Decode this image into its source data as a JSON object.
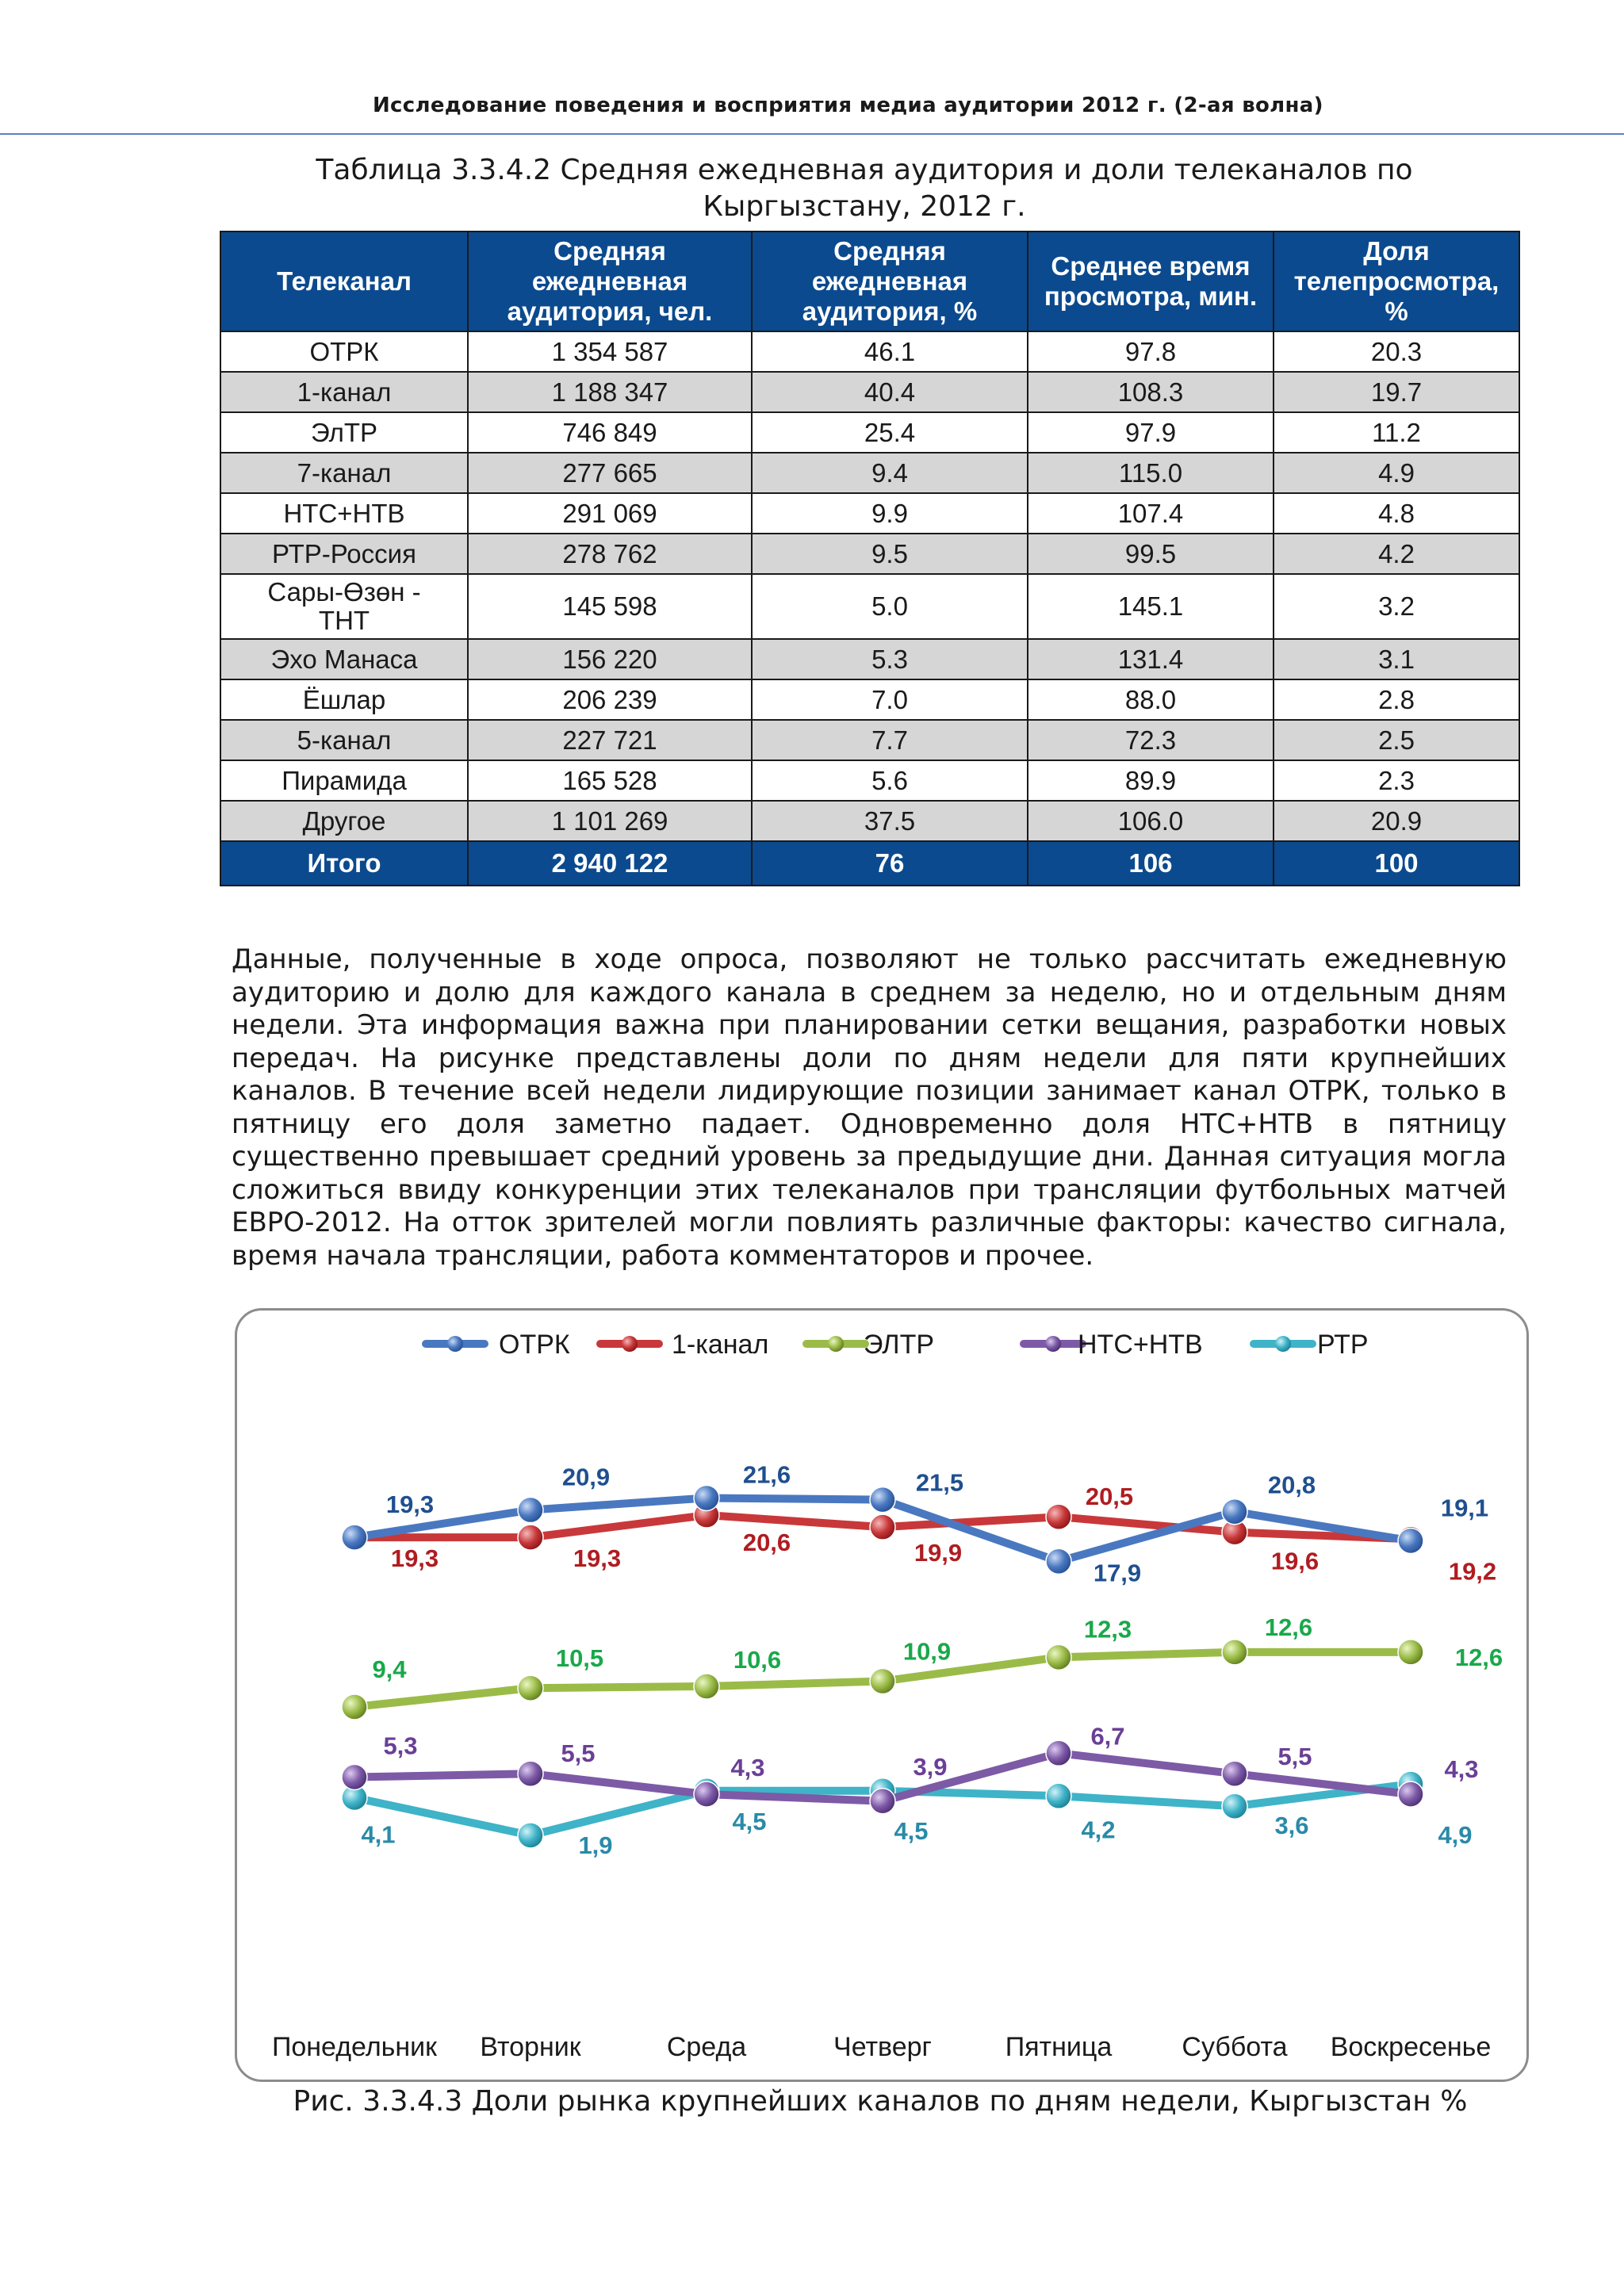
{
  "header": {
    "running_title": "Исследование поведения и восприятия медиа аудитории 2012 г. (2-ая волна)"
  },
  "table": {
    "caption": "Таблица 3.3.4.2 Средняя ежедневная аудитория и доли телеканалов по Кыргызстану, 2012 г.",
    "columns": [
      "Телеканал",
      "Средняя ежедневная аудитория, чел.",
      "Средняя ежедневная аудитория, %",
      "Среднее время просмотра, мин.",
      "Доля телепросмотра, %"
    ],
    "rows": [
      [
        "ОТРК",
        "1 354 587",
        "46.1",
        "97.8",
        "20.3"
      ],
      [
        "1-канал",
        "1 188 347",
        "40.4",
        "108.3",
        "19.7"
      ],
      [
        "ЭлТР",
        "746 849",
        "25.4",
        "97.9",
        "11.2"
      ],
      [
        "7-канал",
        "277 665",
        "9.4",
        "115.0",
        "4.9"
      ],
      [
        "НТС+НТВ",
        "291 069",
        "9.9",
        "107.4",
        "4.8"
      ],
      [
        "РТР-Россия",
        "278 762",
        "9.5",
        "99.5",
        "4.2"
      ],
      [
        "Сары-Өзөн - ТНТ",
        "145 598",
        "5.0",
        "145.1",
        "3.2"
      ],
      [
        "Эхо Манаса",
        "156 220",
        "5.3",
        "131.4",
        "3.1"
      ],
      [
        "Ёшлар",
        "206 239",
        "7.0",
        "88.0",
        "2.8"
      ],
      [
        "5-канал",
        "227 721",
        "7.7",
        "72.3",
        "2.5"
      ],
      [
        "Пирамида",
        "165 528",
        "5.6",
        "89.9",
        "2.3"
      ],
      [
        "Другое",
        "1 101 269",
        "37.5",
        "106.0",
        "20.9"
      ]
    ],
    "total": [
      "Итого",
      "2 940 122",
      "76",
      "106",
      "100"
    ]
  },
  "body_text": "Данные, полученные в ходе опроса, позволяют не только рассчитать ежедневную аудиторию и долю для каждого канала в среднем за неделю, но и отдельным дням недели. Эта информация важна при планировании сетки вещания, разработки новых передач. На рисунке представлены доли по дням недели для пяти крупнейших каналов. В течение всей недели лидирующие позиции занимает канал ОТРК, только в пятницу его доля заметно падает. Одновременно доля НТС+НТВ в пятницу существенно превышает средний уровень за предыдущие дни. Данная ситуация могла сложиться ввиду конкуренции этих телеканалов при трансляции футбольных матчей ЕВРО-2012. На отток зрителей могли повлиять различные факторы: качество сигнала, время начала трансляции, работа комментаторов и прочее.",
  "chart_data": {
    "type": "line",
    "title": "",
    "xlabel": "",
    "ylabel": "",
    "categories": [
      "Понедельник",
      "Вторник",
      "Среда",
      "Четверг",
      "Пятница",
      "Суббота",
      "Воскресенье"
    ],
    "legend_position": "top",
    "grid": false,
    "series": [
      {
        "name": "ОТРК",
        "color": "#4a78c0",
        "label_color": "#1f4f8f",
        "values": [
          19.3,
          20.9,
          21.6,
          21.5,
          17.9,
          20.8,
          19.1
        ],
        "labels": [
          "19,3",
          "20,9",
          "21,6",
          "21,5",
          "17,9",
          "20,8",
          "19,1"
        ]
      },
      {
        "name": "1-канал",
        "color": "#c8383a",
        "label_color": "#b01c20",
        "values": [
          19.3,
          19.3,
          20.6,
          19.9,
          20.5,
          19.6,
          19.2
        ],
        "labels": [
          "19,3",
          "19,3",
          "20,6",
          "19,9",
          "20,5",
          "19,6",
          "19,2"
        ]
      },
      {
        "name": "ЭЛТР",
        "color": "#9bbb48",
        "label_color": "#1aa84a",
        "values": [
          9.4,
          10.5,
          10.6,
          10.9,
          12.3,
          12.6,
          12.6
        ],
        "labels": [
          "9,4",
          "10,5",
          "10,6",
          "10,9",
          "12,3",
          "12,6",
          "12,6"
        ]
      },
      {
        "name": "НТС+НТВ",
        "color": "#7d5aa6",
        "label_color": "#6a3f96",
        "values": [
          5.3,
          5.5,
          4.3,
          3.9,
          6.7,
          5.5,
          4.3
        ],
        "labels": [
          "5,3",
          "5,5",
          "4,3",
          "3,9",
          "6,7",
          "5,5",
          "4,3"
        ]
      },
      {
        "name": "РТР",
        "color": "#3fb3c8",
        "label_color": "#2a8aa8",
        "values": [
          4.1,
          1.9,
          4.5,
          4.5,
          4.2,
          3.6,
          4.9
        ],
        "labels": [
          "4,1",
          "1,9",
          "4,5",
          "4,5",
          "4,2",
          "3,6",
          "4,9"
        ]
      }
    ]
  },
  "figure_caption": "Рис. 3.3.4.3 Доли рынка крупнейших каналов по дням недели, Кыргызстан %"
}
